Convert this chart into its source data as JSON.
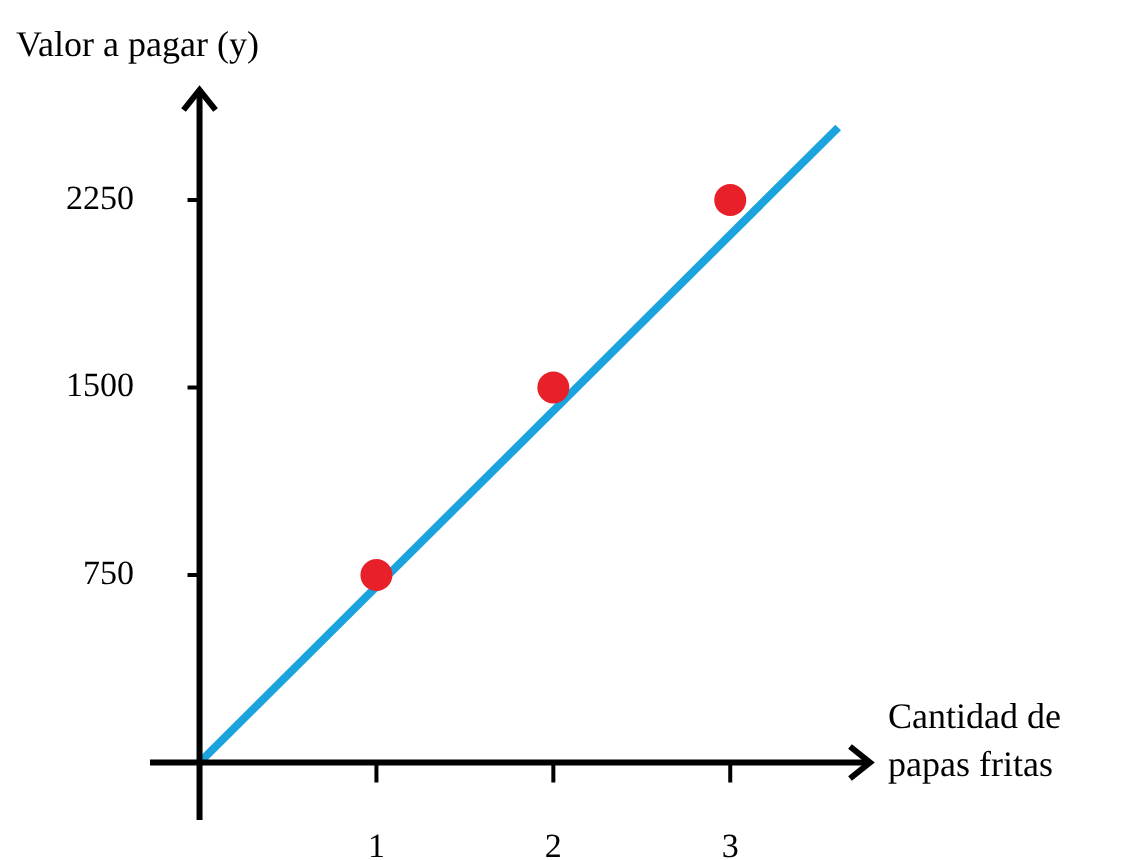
{
  "chart_data": {
    "type": "scatter",
    "xlabel": "Cantidad de papas fritas",
    "ylabel": "Valor a pagar (y)",
    "xlim": [
      -0.28,
      3.79
    ],
    "ylim": [
      -230,
      2690
    ],
    "xticks": [
      1,
      2,
      3
    ],
    "yticks": [
      750,
      1500,
      2250
    ],
    "grid": false,
    "legend": false,
    "series": [
      {
        "type": "line",
        "color": "#1aa3dd",
        "x": [
          0,
          3.61
        ],
        "values": [
          0,
          2540
        ],
        "marker": "none"
      },
      {
        "type": "scatter",
        "color": "#e8202a",
        "x": [
          1,
          2,
          3
        ],
        "values": [
          750,
          1500,
          2250
        ],
        "marker": "circle"
      }
    ]
  }
}
